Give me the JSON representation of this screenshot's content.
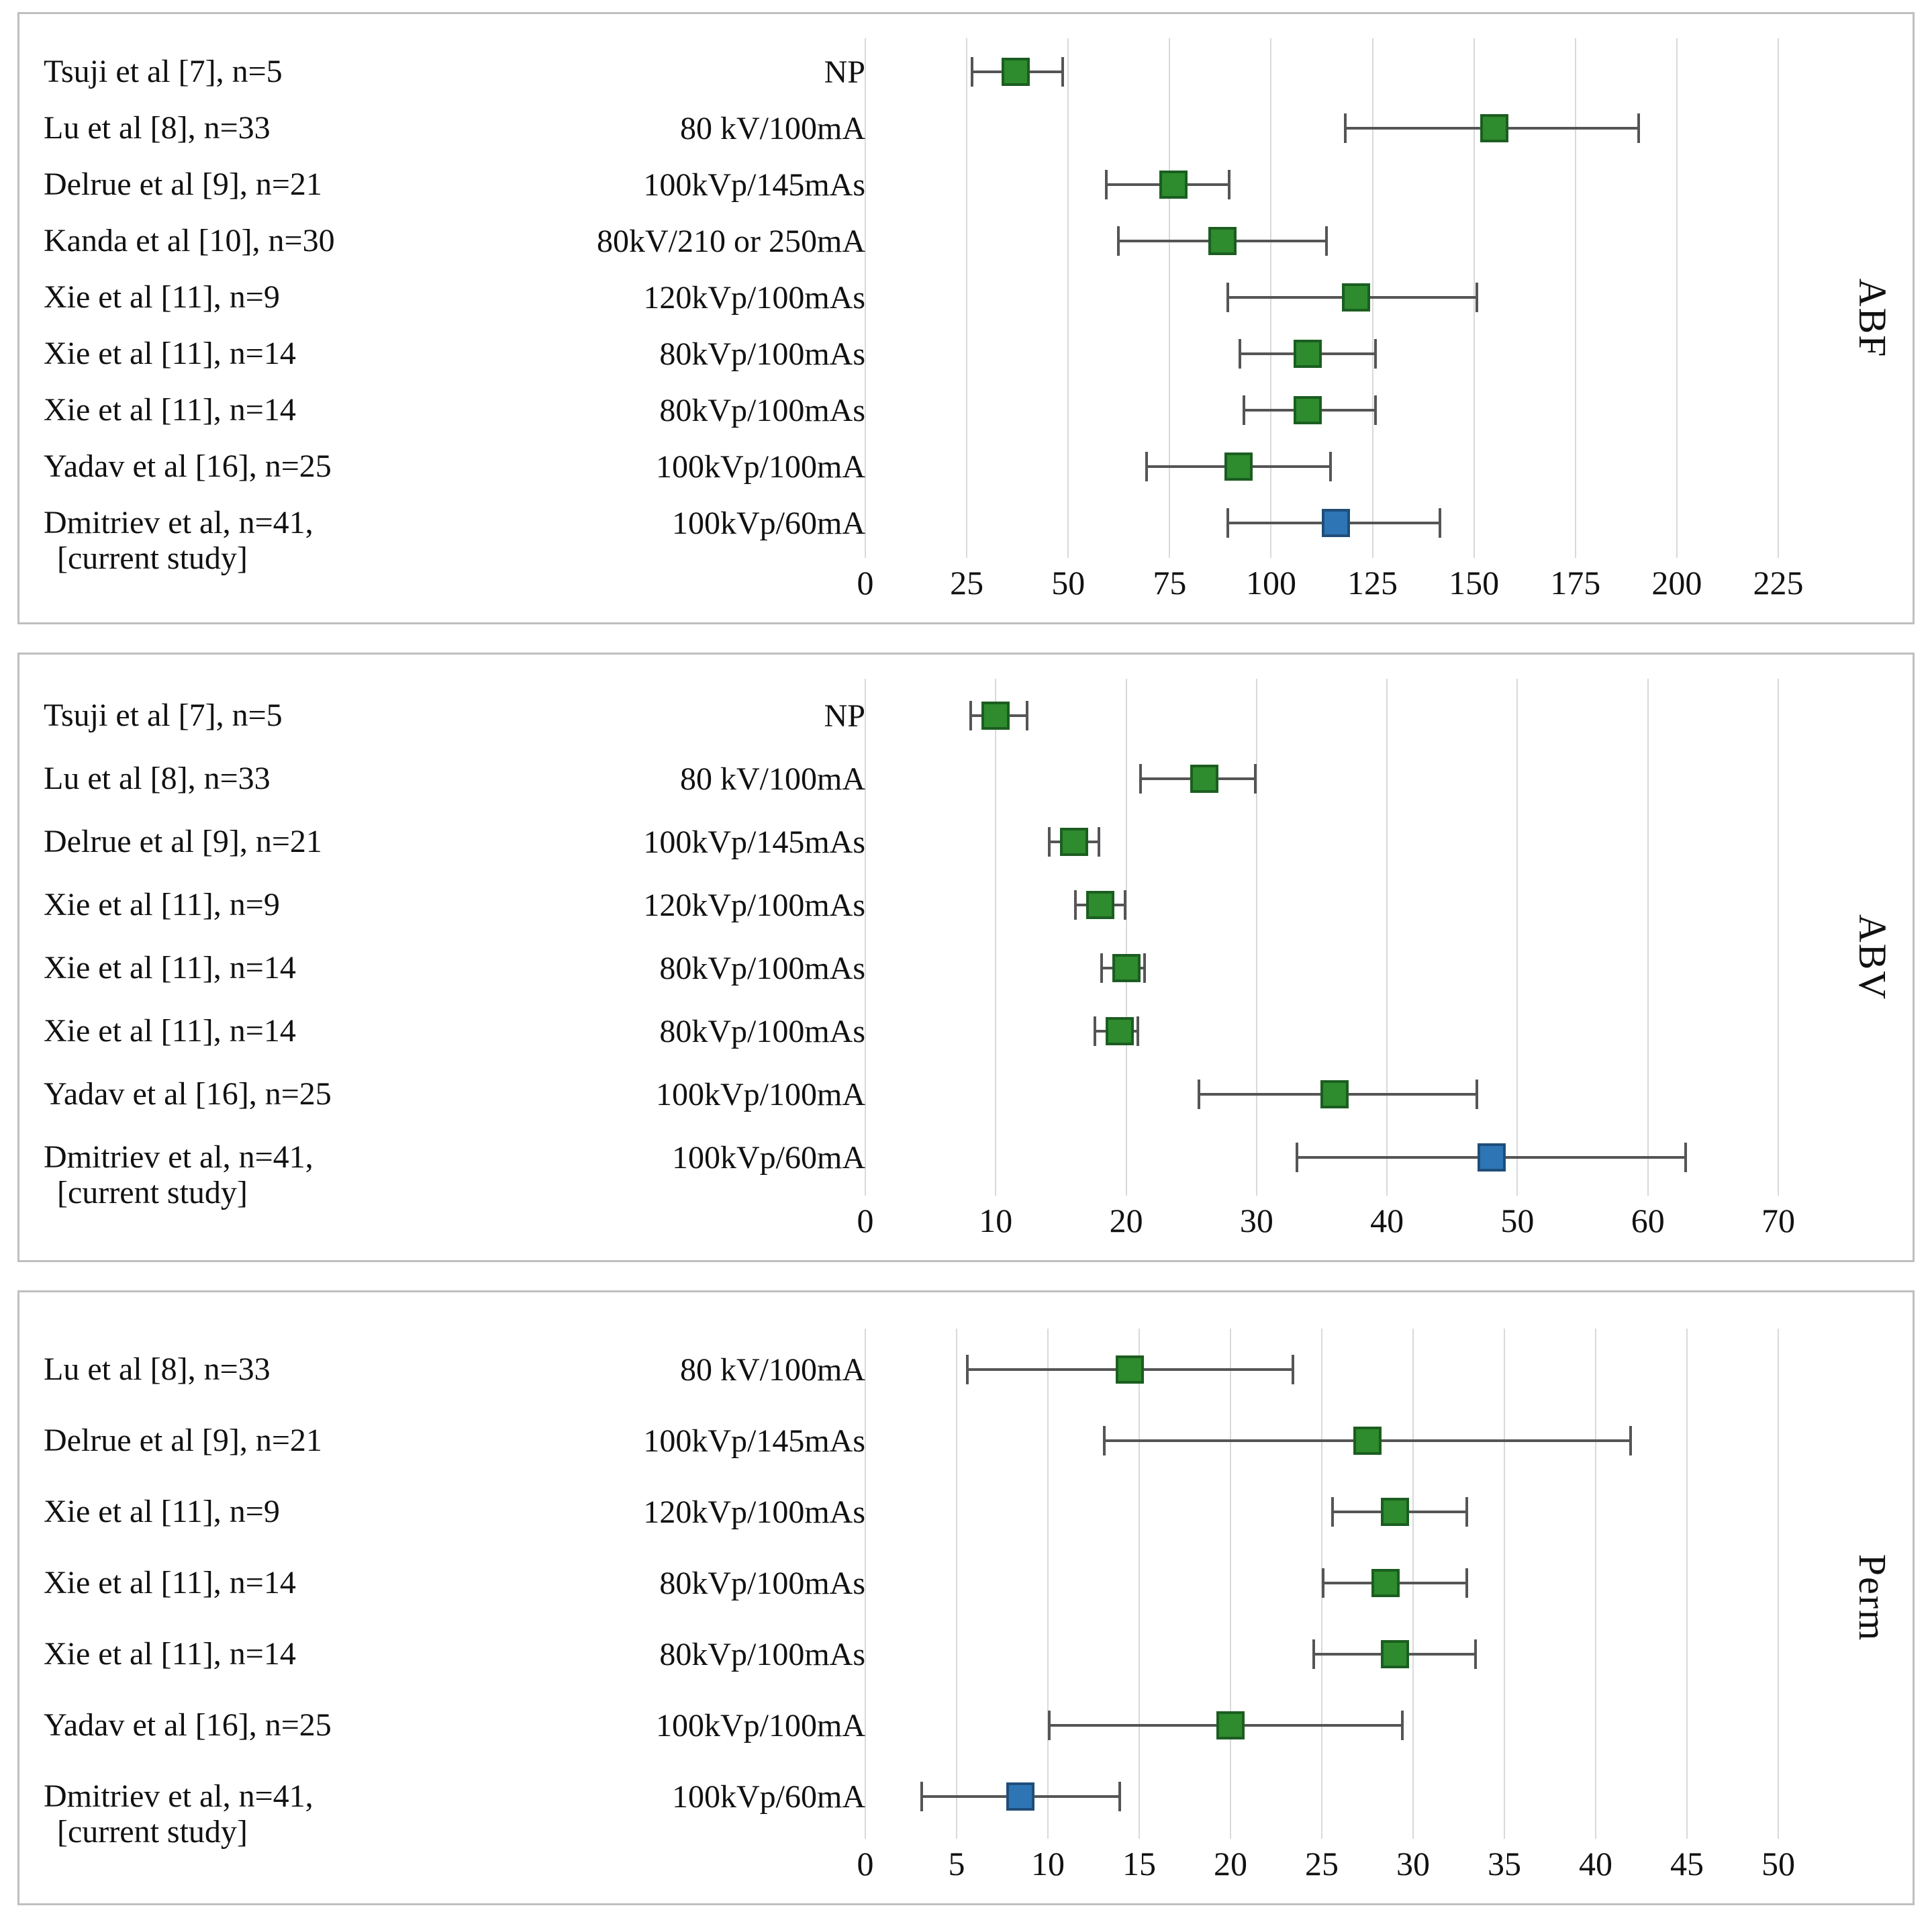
{
  "colors": {
    "marker_green_fill": "#2e8b2e",
    "marker_green_border": "#1b5e20",
    "marker_blue_fill": "#2e75b6",
    "marker_blue_border": "#1f4e79",
    "error_bar": "#555555",
    "gridline": "#d9d9d9",
    "panel_border": "#bfbfbf"
  },
  "chart_data": [
    {
      "type": "scatter",
      "panel_label": "ABF",
      "xlim": [
        0,
        225
      ],
      "xticks": [
        0,
        25,
        50,
        75,
        100,
        125,
        150,
        175,
        200,
        225
      ],
      "grid": true,
      "rows": [
        {
          "study": "Tsuji et al [7], n=5",
          "protocol": "NP",
          "value": 37,
          "lo": 26,
          "hi": 49,
          "current": false
        },
        {
          "study": "Lu et al [8], n=33",
          "protocol": "80 kV/100mA",
          "value": 155,
          "lo": 118,
          "hi": 191,
          "current": false
        },
        {
          "study": "Delrue et al [9], n=21",
          "protocol": "100kVp/145mAs",
          "value": 76,
          "lo": 59,
          "hi": 90,
          "current": false
        },
        {
          "study": "Kanda et al [10], n=30",
          "protocol": "80kV/210 or 250mA",
          "value": 88,
          "lo": 62,
          "hi": 114,
          "current": false
        },
        {
          "study": "Xie et al [11], n=9",
          "protocol": "120kVp/100mAs",
          "value": 121,
          "lo": 89,
          "hi": 151,
          "current": false
        },
        {
          "study": "Xie et al [11], n=14",
          "protocol": "80kVp/100mAs",
          "value": 109,
          "lo": 92,
          "hi": 126,
          "current": false
        },
        {
          "study": "Xie et al [11], n=14",
          "protocol": "80kVp/100mAs",
          "value": 109,
          "lo": 93,
          "hi": 126,
          "current": false
        },
        {
          "study": "Yadav et al [16], n=25",
          "protocol": "100kVp/100mA",
          "value": 92,
          "lo": 69,
          "hi": 115,
          "current": false
        },
        {
          "study": "Dmitriev et al, n=41,",
          "study_line2": "[current study]",
          "protocol": "100kVp/60mA",
          "value": 116,
          "lo": 89,
          "hi": 142,
          "current": true
        }
      ]
    },
    {
      "type": "scatter",
      "panel_label": "ABV",
      "xlim": [
        0,
        70
      ],
      "xticks": [
        0,
        10,
        20,
        30,
        40,
        50,
        60,
        70
      ],
      "grid": true,
      "rows": [
        {
          "study": "Tsuji et al [7], n=5",
          "protocol": "NP",
          "value": 10,
          "lo": 8,
          "hi": 12.5,
          "current": false
        },
        {
          "study": "Lu et al [8], n=33",
          "protocol": "80 kV/100mA",
          "value": 26,
          "lo": 21,
          "hi": 30,
          "current": false
        },
        {
          "study": "Delrue et al [9], n=21",
          "protocol": "100kVp/145mAs",
          "value": 16,
          "lo": 14,
          "hi": 18,
          "current": false
        },
        {
          "study": "Xie et al [11], n=9",
          "protocol": "120kVp/100mAs",
          "value": 18,
          "lo": 16,
          "hi": 20,
          "current": false
        },
        {
          "study": "Xie et al [11], n=14",
          "protocol": "80kVp/100mAs",
          "value": 20,
          "lo": 18,
          "hi": 21.5,
          "current": false
        },
        {
          "study": "Xie et al [11], n=14",
          "protocol": "80kVp/100mAs",
          "value": 19.5,
          "lo": 17.5,
          "hi": 21,
          "current": false
        },
        {
          "study": "Yadav et al [16], n=25",
          "protocol": "100kVp/100mA",
          "value": 36,
          "lo": 25.5,
          "hi": 47,
          "current": false
        },
        {
          "study": "Dmitriev et al, n=41,",
          "study_line2": "[current study]",
          "protocol": "100kVp/60mA",
          "value": 48,
          "lo": 33,
          "hi": 63,
          "current": true
        }
      ]
    },
    {
      "type": "scatter",
      "panel_label": "Perm",
      "xlim": [
        0,
        50
      ],
      "xticks": [
        0,
        5,
        10,
        15,
        20,
        25,
        30,
        35,
        40,
        45,
        50
      ],
      "grid": true,
      "rows": [
        {
          "study": "Lu et al [8], n=33",
          "protocol": "80 kV/100mA",
          "value": 14.5,
          "lo": 5.5,
          "hi": 23.5,
          "current": false
        },
        {
          "study": "Delrue et al [9], n=21",
          "protocol": "100kVp/145mAs",
          "value": 27.5,
          "lo": 13,
          "hi": 42,
          "current": false
        },
        {
          "study": "Xie et al [11], n=9",
          "protocol": "120kVp/100mAs",
          "value": 29,
          "lo": 25.5,
          "hi": 33,
          "current": false
        },
        {
          "study": "Xie et al [11], n=14",
          "protocol": "80kVp/100mAs",
          "value": 28.5,
          "lo": 25,
          "hi": 33,
          "current": false
        },
        {
          "study": "Xie et al [11], n=14",
          "protocol": "80kVp/100mAs",
          "value": 29,
          "lo": 24.5,
          "hi": 33.5,
          "current": false
        },
        {
          "study": "Yadav et al [16], n=25",
          "protocol": "100kVp/100mA",
          "value": 20,
          "lo": 10,
          "hi": 29.5,
          "current": false
        },
        {
          "study": "Dmitriev et al, n=41,",
          "study_line2": "[current study]",
          "protocol": "100kVp/60mA",
          "value": 8.5,
          "lo": 3,
          "hi": 14,
          "current": true
        }
      ]
    }
  ]
}
